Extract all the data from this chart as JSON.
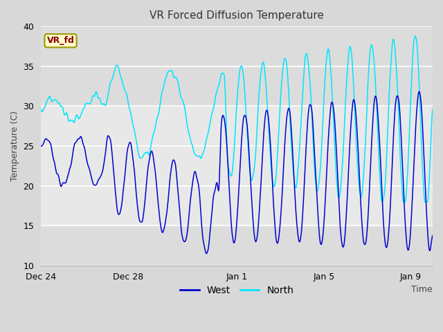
{
  "title": "VR Forced Diffusion Temperature",
  "xlabel": "Time",
  "ylabel": "Temperature (C)",
  "ylim": [
    10,
    40
  ],
  "n_days": 18,
  "annotation_text": "VR_fd",
  "annotation_color": "#8B0000",
  "annotation_bg": "#FFFACD",
  "annotation_edge": "#999900",
  "legend_west_label": "West",
  "legend_north_label": "North",
  "west_color": "#0000CC",
  "north_color": "#00E5FF",
  "fig_bg_color": "#D8D8D8",
  "plot_bg_outer": "#DCDCDC",
  "plot_bg_inner": "#E8E8E8",
  "grid_color": "#FFFFFF",
  "yticks": [
    10,
    15,
    20,
    25,
    30,
    35,
    40
  ],
  "xtick_labels": [
    "Dec 24",
    "Dec 28",
    "Jan 1",
    "Jan 5",
    "Jan 9"
  ],
  "xtick_positions": [
    0,
    4,
    9,
    13,
    17
  ],
  "band_low": 15,
  "band_high": 30
}
